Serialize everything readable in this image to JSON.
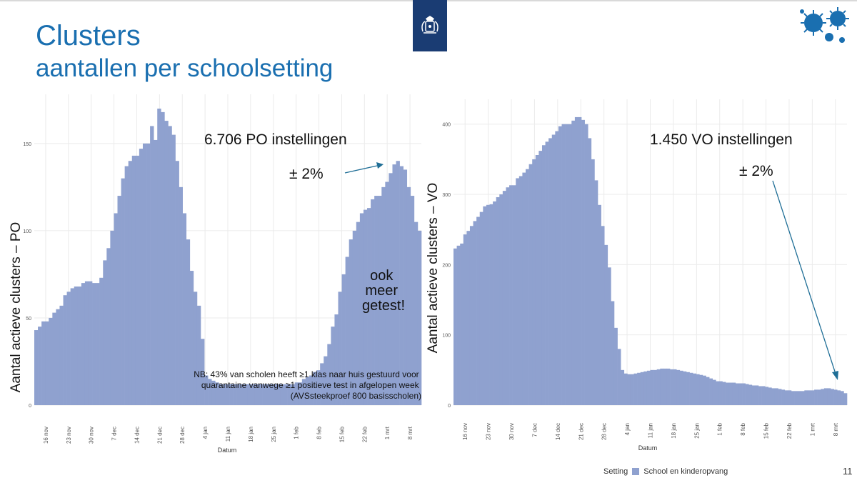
{
  "slide": {
    "title": "Clusters",
    "subtitle": "aantallen per schoolsetting",
    "page_number": "11"
  },
  "legend": {
    "title": "Setting",
    "entry": "School en kinderopvang"
  },
  "colors": {
    "bar": "#8fa1cf",
    "title": "#1a6fb0",
    "logo": "#1a3c73",
    "arrow": "#1f6e96",
    "virus": "#1a6fb0"
  },
  "icons": {
    "logo": "royal-coat-of-arms-icon",
    "virus": "coronavirus-icon"
  },
  "chart_data": [
    {
      "type": "bar",
      "ylabel": "Aantal actieve clusters – PO",
      "xlabel": "Datum",
      "ylim": [
        0,
        170
      ],
      "yticks": [
        "0",
        "50",
        "100",
        "150"
      ],
      "yticks_values": [
        0,
        50,
        100,
        150
      ],
      "xticks": [
        "16 nov",
        "23 nov",
        "30 nov",
        "7 dec",
        "14 dec",
        "21 dec",
        "28 dec",
        "4 jan",
        "11 jan",
        "18 jan",
        "25 jan",
        "1 feb",
        "8 feb",
        "15 feb",
        "22 feb",
        "1 mrt",
        "8 mrt"
      ],
      "grid": true,
      "annotations": {
        "count": "6.706 PO instellingen",
        "pct": "± 2%",
        "note_lines": [
          "ook",
          "meer",
          "getest!"
        ],
        "nb_lines": [
          "NB: 43% van scholen heeft ≥1 klas naar huis gestuurd voor",
          "quarantaine vanwege ≥1 positieve test in afgelopen week",
          "(AVSsteekproef 800 basisscholen)"
        ]
      },
      "values": [
        43,
        45,
        48,
        48,
        50,
        53,
        55,
        57,
        63,
        65,
        67,
        68,
        68,
        70,
        71,
        71,
        70,
        70,
        73,
        83,
        90,
        100,
        110,
        120,
        130,
        137,
        140,
        143,
        143,
        147,
        150,
        150,
        160,
        152,
        170,
        168,
        163,
        160,
        155,
        140,
        125,
        110,
        95,
        77,
        65,
        57,
        38,
        17,
        15,
        14,
        13,
        12,
        12,
        12,
        12,
        12,
        12,
        12,
        12,
        12,
        12,
        12,
        12,
        12,
        12,
        12,
        12,
        12,
        12,
        12,
        12,
        12,
        13,
        13,
        15,
        16,
        17,
        19,
        20,
        24,
        28,
        35,
        45,
        52,
        65,
        75,
        85,
        95,
        100,
        105,
        110,
        112,
        113,
        118,
        120,
        120,
        125,
        128,
        133,
        138,
        140,
        137,
        135,
        125,
        120,
        105,
        100
      ]
    },
    {
      "type": "bar",
      "ylabel": "Aantal actieve clusters – VO",
      "xlabel": "Datum",
      "ylim": [
        0,
        415
      ],
      "yticks": [
        "0",
        "100",
        "200",
        "300",
        "400"
      ],
      "yticks_values": [
        0,
        100,
        200,
        300,
        400
      ],
      "xticks": [
        "16 nov",
        "23 nov",
        "30 nov",
        "7 dec",
        "14 dec",
        "21 dec",
        "28 dec",
        "4 jan",
        "11 jan",
        "18 jan",
        "25 jan",
        "1 feb",
        "8 feb",
        "15 feb",
        "22 feb",
        "1 mrt",
        "8 mrt"
      ],
      "grid": true,
      "annotations": {
        "count": "1.450 VO instellingen",
        "pct": "± 2%"
      },
      "values": [
        223,
        227,
        230,
        243,
        248,
        255,
        262,
        268,
        275,
        283,
        285,
        286,
        290,
        296,
        300,
        305,
        310,
        313,
        313,
        323,
        326,
        331,
        336,
        343,
        350,
        356,
        362,
        370,
        375,
        380,
        385,
        390,
        397,
        400,
        400,
        400,
        405,
        410,
        410,
        406,
        400,
        380,
        350,
        320,
        285,
        255,
        228,
        196,
        148,
        110,
        80,
        50,
        45,
        44,
        44,
        45,
        46,
        47,
        48,
        49,
        50,
        50,
        51,
        52,
        52,
        52,
        51,
        51,
        50,
        49,
        48,
        47,
        46,
        45,
        44,
        43,
        42,
        40,
        38,
        36,
        34,
        34,
        33,
        32,
        32,
        32,
        31,
        31,
        31,
        30,
        29,
        28,
        28,
        27,
        27,
        26,
        25,
        24,
        24,
        23,
        22,
        21,
        21,
        20,
        20,
        20,
        20,
        21,
        21,
        21,
        22,
        22,
        23,
        24,
        24,
        23,
        22,
        21,
        20,
        17
      ]
    }
  ]
}
